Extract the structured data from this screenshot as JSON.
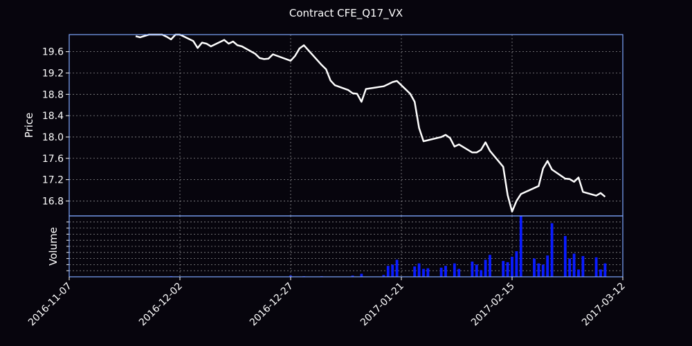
{
  "chart_data": {
    "type": "line",
    "title": "Contract CFE_Q17_VX",
    "xlabel": "",
    "x_ticks": [
      "2016-11-07",
      "2016-12-02",
      "2016-12-27",
      "2017-01-21",
      "2017-02-15",
      "2017-03-12"
    ],
    "xlim": [
      "2016-11-07",
      "2017-03-12"
    ],
    "grid": true,
    "colors": {
      "background": "#07050d",
      "frame": "#7fa7ff",
      "price_line": "#ffffff",
      "volume_bars": "#0a1cff"
    },
    "price_panel": {
      "ylabel": "Price",
      "ylim": [
        16.52,
        19.92
      ],
      "y_ticks": [
        16.8,
        17.2,
        17.6,
        18.0,
        18.4,
        18.8,
        19.2,
        19.6
      ],
      "series": [
        {
          "dates": [
            "2016-11-22",
            "2016-11-23",
            "2016-11-25",
            "2016-11-28",
            "2016-11-29",
            "2016-11-30",
            "2016-12-01",
            "2016-12-02",
            "2016-12-05",
            "2016-12-06",
            "2016-12-07",
            "2016-12-08",
            "2016-12-09",
            "2016-12-12",
            "2016-12-13",
            "2016-12-14",
            "2016-12-15",
            "2016-12-16",
            "2016-12-19",
            "2016-12-20",
            "2016-12-21",
            "2016-12-22",
            "2016-12-23",
            "2016-12-27",
            "2016-12-28",
            "2016-12-29",
            "2016-12-30",
            "2017-01-03",
            "2017-01-04",
            "2017-01-05",
            "2017-01-06",
            "2017-01-09",
            "2017-01-10",
            "2017-01-11",
            "2017-01-12",
            "2017-01-13",
            "2017-01-17",
            "2017-01-18",
            "2017-01-19",
            "2017-01-20",
            "2017-01-23",
            "2017-01-24",
            "2017-01-25",
            "2017-01-26",
            "2017-01-27",
            "2017-01-30",
            "2017-01-31",
            "2017-02-01",
            "2017-02-02",
            "2017-02-03",
            "2017-02-06",
            "2017-02-07",
            "2017-02-08",
            "2017-02-09",
            "2017-02-10",
            "2017-02-13",
            "2017-02-14",
            "2017-02-15",
            "2017-02-16",
            "2017-02-17",
            "2017-02-21",
            "2017-02-22",
            "2017-02-23",
            "2017-02-24",
            "2017-02-27",
            "2017-02-28",
            "2017-03-01",
            "2017-03-02",
            "2017-03-03",
            "2017-03-06",
            "2017-03-07",
            "2017-03-08"
          ],
          "values": [
            19.89,
            19.87,
            19.92,
            19.92,
            19.88,
            19.83,
            19.92,
            19.92,
            19.8,
            19.67,
            19.77,
            19.75,
            19.7,
            19.82,
            19.75,
            19.79,
            19.72,
            19.7,
            19.56,
            19.48,
            19.46,
            19.47,
            19.55,
            19.43,
            19.52,
            19.66,
            19.72,
            19.35,
            19.27,
            19.06,
            18.97,
            18.88,
            18.82,
            18.81,
            18.66,
            18.9,
            18.95,
            18.99,
            19.03,
            19.05,
            18.81,
            18.66,
            18.17,
            17.92,
            17.94,
            18.0,
            18.04,
            17.98,
            17.82,
            17.86,
            17.71,
            17.71,
            17.76,
            17.9,
            17.74,
            17.44,
            16.91,
            16.6,
            16.8,
            16.93,
            17.08,
            17.41,
            17.55,
            17.39,
            17.22,
            17.21,
            17.16,
            17.24,
            16.97,
            16.9,
            16.95,
            16.88
          ]
        }
      ]
    },
    "volume_panel": {
      "ylabel": "Volume",
      "ylim": [
        0,
        100
      ],
      "grid_ticks": [
        10,
        20,
        30,
        40,
        50,
        60,
        70,
        80,
        90
      ],
      "series": [
        {
          "dates": [
            "2016-11-30",
            "2016-12-27",
            "2016-12-30",
            "2017-01-03",
            "2017-01-10",
            "2017-01-12",
            "2017-01-17",
            "2017-01-18",
            "2017-01-19",
            "2017-01-20",
            "2017-01-24",
            "2017-01-25",
            "2017-01-26",
            "2017-01-27",
            "2017-01-30",
            "2017-01-31",
            "2017-02-02",
            "2017-02-03",
            "2017-02-06",
            "2017-02-07",
            "2017-02-08",
            "2017-02-09",
            "2017-02-10",
            "2017-02-13",
            "2017-02-14",
            "2017-02-15",
            "2017-02-16",
            "2017-02-17",
            "2017-02-20",
            "2017-02-21",
            "2017-02-22",
            "2017-02-23",
            "2017-02-24",
            "2017-02-27",
            "2017-02-28",
            "2017-03-01",
            "2017-03-02",
            "2017-03-03",
            "2017-03-06",
            "2017-03-07",
            "2017-03-08"
          ],
          "values": [
            1,
            2,
            1,
            1,
            2,
            5,
            3,
            18,
            20,
            28,
            17,
            22,
            13,
            14,
            15,
            18,
            22,
            13,
            25,
            20,
            11,
            28,
            36,
            26,
            24,
            33,
            42,
            100,
            30,
            22,
            20,
            35,
            88,
            67,
            30,
            38,
            12,
            34,
            32,
            12,
            22
          ]
        }
      ]
    }
  }
}
